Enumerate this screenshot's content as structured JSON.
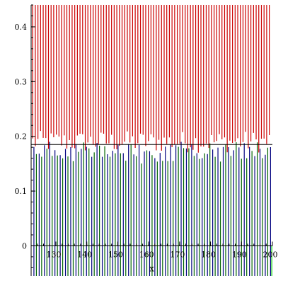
{
  "chart_data": {
    "type": "line",
    "title": "",
    "xlabel": "x",
    "ylabel": "",
    "xlim": [
      122,
      200
    ],
    "ylim": [
      -0.055,
      0.44
    ],
    "x_ticks": [
      130,
      140,
      150,
      160,
      170,
      180,
      190,
      200
    ],
    "x_tick_labels": [
      "130",
      "140",
      "150",
      "160",
      "170",
      "180",
      "190",
      "200"
    ],
    "y_ticks": [
      0,
      0.1,
      0.2,
      0.3,
      0.4
    ],
    "y_tick_labels": [
      "0",
      "0.1",
      "0.2",
      "0.3",
      "0.4"
    ],
    "x_minor_step": 2,
    "y_minor_step": 0.02,
    "grid": false,
    "legend": "none",
    "horizontal_line_y": 0.185,
    "series": [
      {
        "color": "#cc0000",
        "x_start": 122.5,
        "x_end": 199.5,
        "x_step": 0.85,
        "range_top": 0.44,
        "range_bottom_min": 0.17,
        "range_bottom_max": 0.21
      },
      {
        "color": "#00007f",
        "x_start": 122.9,
        "x_end": 199.9,
        "x_step": 1.7,
        "range_top_min": 0.16,
        "range_top_max": 0.19,
        "range_bottom": -0.055
      },
      {
        "color": "#006400",
        "x_start": 123.7,
        "x_end": 199.7,
        "x_step": 1.7,
        "range_top_min": 0.15,
        "range_top_max": 0.19,
        "range_bottom": -0.055
      },
      {
        "color": "#00cc00",
        "x_start": 199.8,
        "x_end": 199.8,
        "x_step": 1,
        "range_top": 0.0,
        "range_bottom": -0.055
      }
    ]
  }
}
